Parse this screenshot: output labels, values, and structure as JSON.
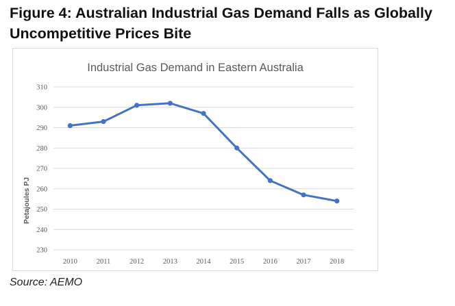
{
  "figure": {
    "title": "Figure 4: Australian Industrial Gas Demand Falls as Globally Uncompetitive Prices Bite",
    "source": "Source: AEMO"
  },
  "colors": {
    "line": "#4472c4",
    "grid": "#d9d9d9",
    "axis_text": "#595959"
  },
  "chart_data": {
    "type": "line",
    "title": "Industrial Gas Demand in Eastern Australia",
    "xlabel": "",
    "ylabel": "Petajoules PJ",
    "categories": [
      "2010",
      "2011",
      "2012",
      "2013",
      "2014",
      "2015",
      "2016",
      "2017",
      "2018"
    ],
    "series": [
      {
        "name": "Industrial Gas Demand",
        "values": [
          291,
          293,
          301,
          302,
          297,
          280,
          264,
          257,
          254
        ]
      }
    ],
    "ylim": [
      230,
      310
    ],
    "yticks": [
      230,
      240,
      250,
      260,
      270,
      280,
      290,
      300,
      310
    ],
    "grid": true,
    "legend": "none"
  }
}
